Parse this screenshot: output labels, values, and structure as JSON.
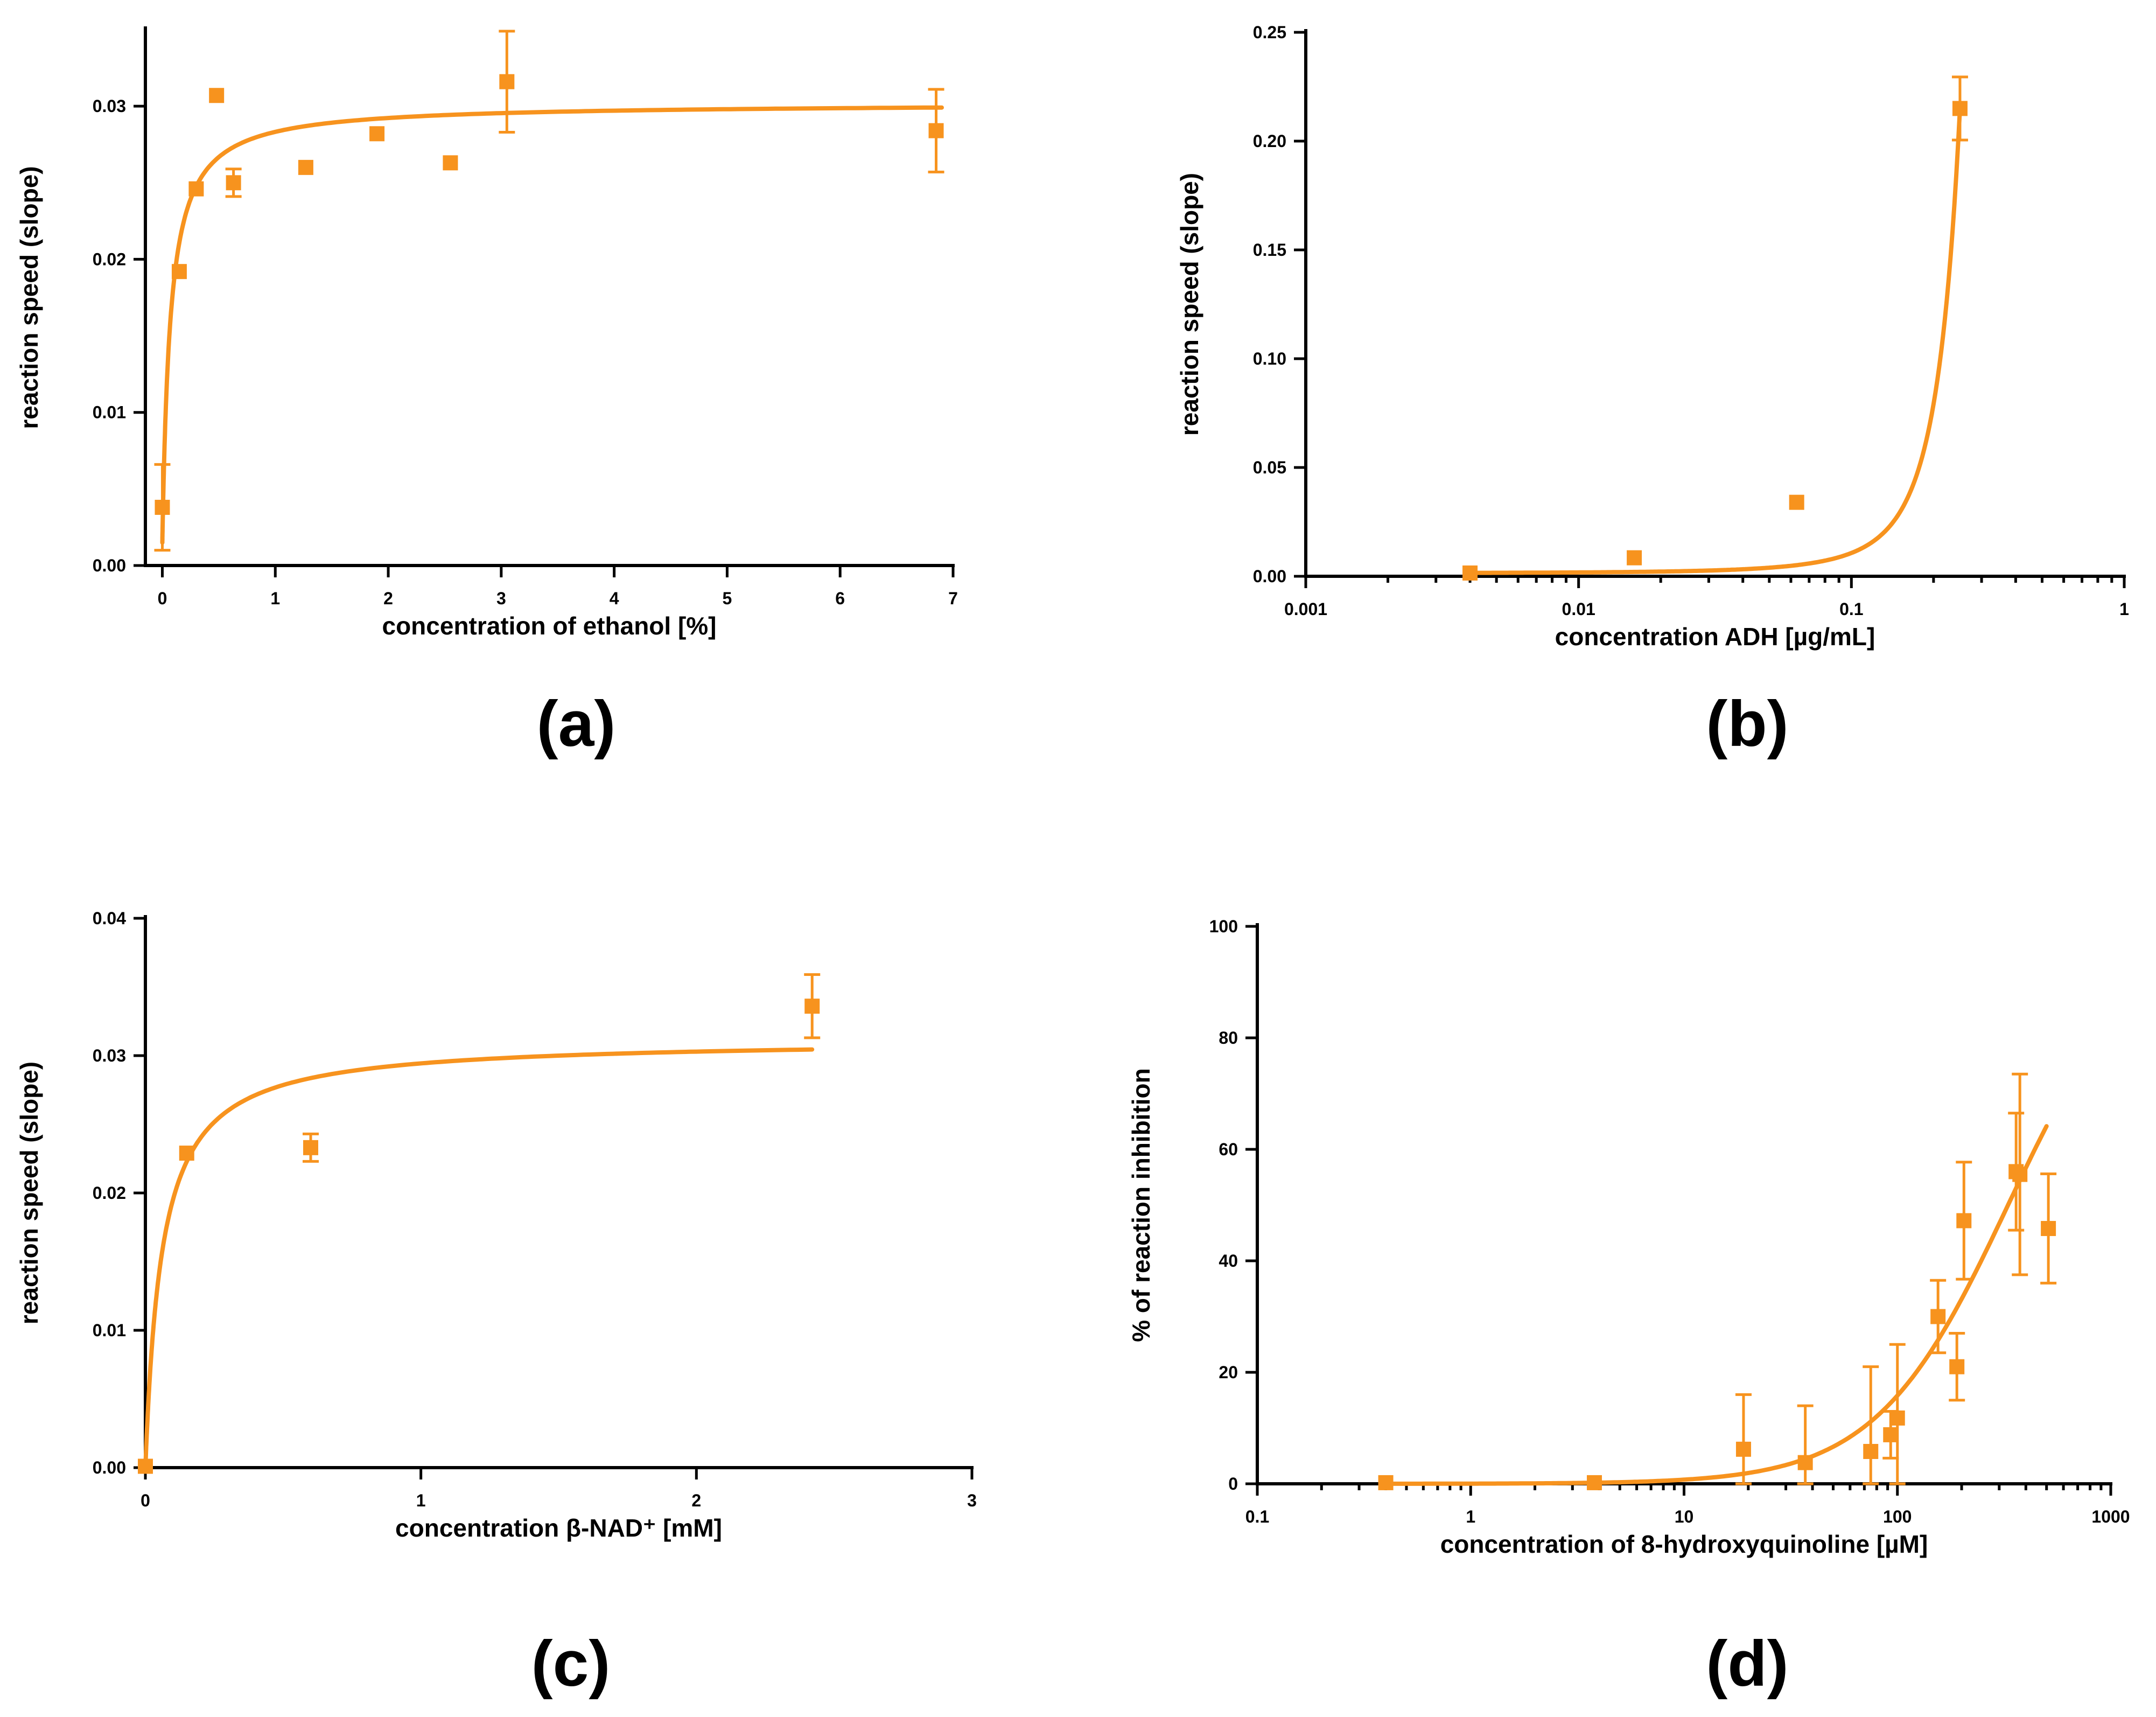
{
  "colors": {
    "series": "#F7931E",
    "axis": "#000000"
  },
  "chart_data": [
    {
      "id": "a",
      "panel_label": "(a)",
      "type": "scatter",
      "xscale": "linear",
      "xlabel": "concentration of ethanol [%]",
      "ylabel": "reaction speed (slope)",
      "xlim": [
        -0.15,
        7.0
      ],
      "ylim": [
        0.0,
        0.035
      ],
      "xticks": [
        0,
        1,
        2,
        3,
        4,
        5,
        6,
        7
      ],
      "xtick_labels": [
        "0",
        "1",
        "2",
        "3",
        "4",
        "5",
        "6",
        "7"
      ],
      "yticks": [
        0.0,
        0.01,
        0.02,
        0.03
      ],
      "ytick_labels": [
        "0.00",
        "0.01",
        "0.02",
        "0.03"
      ],
      "points": [
        {
          "x": 0.0,
          "y": 0.0038,
          "err": 0.0028
        },
        {
          "x": 0.15,
          "y": 0.0192
        },
        {
          "x": 0.3,
          "y": 0.0246
        },
        {
          "x": 0.48,
          "y": 0.0307
        },
        {
          "x": 0.63,
          "y": 0.025,
          "err": 0.0009
        },
        {
          "x": 1.27,
          "y": 0.026
        },
        {
          "x": 1.9,
          "y": 0.0282
        },
        {
          "x": 2.55,
          "y": 0.0263
        },
        {
          "x": 3.05,
          "y": 0.0316,
          "err": 0.0033
        },
        {
          "x": 6.85,
          "y": 0.0284,
          "err": 0.0027
        }
      ],
      "fit": {
        "model": "michaelis-menten",
        "vmax": 0.0302,
        "km": 0.07,
        "x0": 0.0,
        "y0": 0.0015,
        "x_end": 6.9
      }
    },
    {
      "id": "b",
      "panel_label": "(b)",
      "type": "scatter",
      "xscale": "log",
      "xlabel": "concentration ADH [µg/mL]",
      "ylabel": "reaction speed (slope)",
      "xlim": [
        0.001,
        1
      ],
      "ylim": [
        0.0,
        0.25
      ],
      "xticks": [
        0.001,
        0.01,
        0.1,
        1
      ],
      "xtick_labels": [
        "0.001",
        "0.01",
        "0.1",
        "1"
      ],
      "yticks": [
        0.0,
        0.05,
        0.1,
        0.15,
        0.2,
        0.25
      ],
      "ytick_labels": [
        "0.00",
        "0.05",
        "0.10",
        "0.15",
        "0.20",
        "0.25"
      ],
      "points": [
        {
          "x": 0.004,
          "y": 0.0015
        },
        {
          "x": 0.016,
          "y": 0.0085
        },
        {
          "x": 0.063,
          "y": 0.034
        },
        {
          "x": 0.25,
          "y": 0.215,
          "err": 0.0145
        }
      ],
      "fit": {
        "model": "exponential",
        "a": 0.00145,
        "b": 20.0,
        "x_start": 0.004,
        "x_end": 0.25
      }
    },
    {
      "id": "c",
      "panel_label": "(c)",
      "type": "scatter",
      "xscale": "linear",
      "xlabel": "concentration β-NAD⁺ [mM]",
      "ylabel": "reaction speed (slope)",
      "xlim": [
        0.0,
        3.0
      ],
      "ylim": [
        0.0,
        0.04
      ],
      "xticks": [
        0,
        1,
        2,
        3
      ],
      "xtick_labels": [
        "0",
        "1",
        "2",
        "3"
      ],
      "yticks": [
        0.0,
        0.01,
        0.02,
        0.03,
        0.04
      ],
      "ytick_labels": [
        "0.00",
        "0.01",
        "0.02",
        "0.03",
        "0.04"
      ],
      "points": [
        {
          "x": 0.0,
          "y": 0.0001
        },
        {
          "x": 0.15,
          "y": 0.0229
        },
        {
          "x": 0.6,
          "y": 0.0233,
          "err": 0.001
        },
        {
          "x": 2.42,
          "y": 0.0336,
          "err": 0.0023
        }
      ],
      "fit": {
        "model": "michaelis-menten",
        "vmax": 0.0312,
        "km": 0.06,
        "x0": 0.0,
        "y0": 0.0,
        "x_end": 2.42
      }
    },
    {
      "id": "d",
      "panel_label": "(d)",
      "type": "scatter",
      "xscale": "log",
      "xlabel": "concentration of 8-hydroxyquinoline [µM]",
      "ylabel": "% of reaction inhibition",
      "xlim": [
        0.1,
        1000
      ],
      "ylim": [
        0,
        100
      ],
      "xticks": [
        0.1,
        1,
        10,
        100,
        1000
      ],
      "xtick_labels": [
        "0.1",
        "1",
        "10",
        "100",
        "1000"
      ],
      "yticks": [
        0,
        20,
        40,
        60,
        80,
        100
      ],
      "ytick_labels": [
        "0",
        "20",
        "40",
        "60",
        "80",
        "100"
      ],
      "points": [
        {
          "x": 0.4,
          "y": 0.2
        },
        {
          "x": 3.8,
          "y": 0.2
        },
        {
          "x": 19,
          "y": 6.2,
          "err": 9.8
        },
        {
          "x": 37,
          "y": 3.8,
          "err": 10.2
        },
        {
          "x": 75,
          "y": 5.8,
          "err": 15.2
        },
        {
          "x": 93,
          "y": 8.8,
          "err": 4.2
        },
        {
          "x": 100,
          "y": 11.8,
          "err": 13.2
        },
        {
          "x": 155,
          "y": 30.0,
          "err": 6.5
        },
        {
          "x": 190,
          "y": 21.0,
          "err": 6.0
        },
        {
          "x": 205,
          "y": 47.2,
          "err": 10.5
        },
        {
          "x": 360,
          "y": 56.0,
          "err": 10.5
        },
        {
          "x": 375,
          "y": 55.5,
          "err": 18.0
        },
        {
          "x": 510,
          "y": 45.8,
          "err": 9.8
        }
      ],
      "fit": {
        "model": "hill",
        "top": 100,
        "ic50": 330,
        "n": 1.4,
        "x_start": 0.4,
        "x_end": 500
      }
    }
  ]
}
